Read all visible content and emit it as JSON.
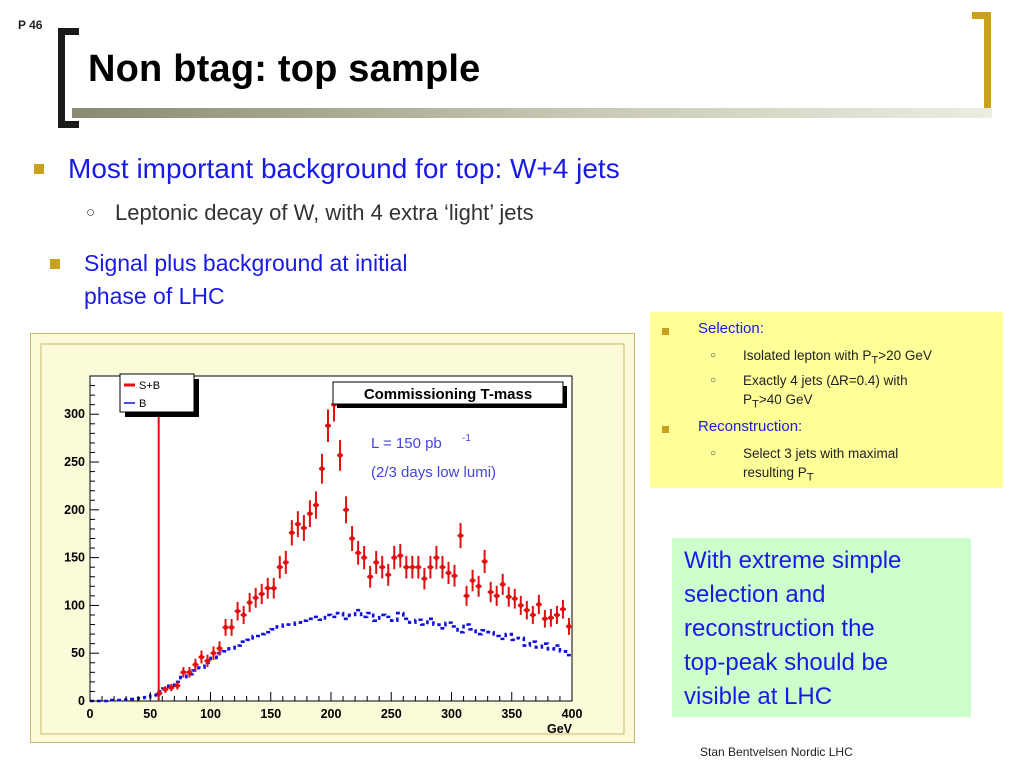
{
  "page_number": "P 46",
  "title": "Non btag: top sample",
  "bullets": {
    "main": "Most important background for top: W+4 jets",
    "sub": "Leptonic decay of W,  with 4 extra ‘light’ jets",
    "second_line1": "Signal plus background at initial",
    "second_line2": "phase of LHC"
  },
  "yellow_box": {
    "selection_heading": "Selection:",
    "sel1": "Isolated lepton with P<sub>T</sub>&gt;20 GeV",
    "sel2a": "Exactly 4 jets (∆R=0.4) with",
    "sel2b": "P<sub>T</sub>&gt;40 GeV",
    "reconstruction_heading": "Reconstruction:",
    "rec1a": "Select 3 jets with maximal",
    "rec1b": "resulting P<sub>T</sub>"
  },
  "green_box": "With extreme simple\nselection and\nreconstruction the\ntop-peak should be\nvisible at LHC",
  "footer": "Stan Bentvelsen Nordic LHC",
  "colors": {
    "accent_gold": "#c8a21c",
    "blue_text": "#1a1ae6",
    "signal_red": "#e01010",
    "background_blue": "#1010e0"
  },
  "chart_data": {
    "type": "scatter",
    "title": "Commissioning T-mass",
    "annotation_lumi": "L = 150 pb",
    "annotation_lumi_sup": "-1",
    "annotation_days": "(2/3 days low lumi)",
    "xlabel": "GeV",
    "ylabel": "",
    "xlim": [
      0,
      400
    ],
    "ylim": [
      0,
      340
    ],
    "xticks": [
      "0",
      "50",
      "100",
      "150",
      "200",
      "250",
      "300",
      "350",
      "400"
    ],
    "yticks": [
      "0",
      "50",
      "100",
      "150",
      "200",
      "250",
      "300"
    ],
    "legend_position": "top-left",
    "series": [
      {
        "name": "S+B",
        "style": "points-with-errors",
        "color": "#e01010",
        "x": [
          57.5,
          62.5,
          67.5,
          72.5,
          77.5,
          82.5,
          87.5,
          92.5,
          97.5,
          102.5,
          107.5,
          112.5,
          117.5,
          122.5,
          127.5,
          132.5,
          137.5,
          142.5,
          147.5,
          152.5,
          157.5,
          162.5,
          167.5,
          172.5,
          177.5,
          182.5,
          187.5,
          192.5,
          197.5,
          202.5,
          207.5,
          212.5,
          217.5,
          222.5,
          227.5,
          232.5,
          237.5,
          242.5,
          247.5,
          252.5,
          257.5,
          262.5,
          267.5,
          272.5,
          277.5,
          282.5,
          287.5,
          292.5,
          297.5,
          302.5,
          307.5,
          312.5,
          317.5,
          322.5,
          327.5,
          332.5,
          337.5,
          342.5,
          347.5,
          352.5,
          357.5,
          362.5,
          367.5,
          372.5,
          377.5,
          382.5,
          387.5,
          392.5,
          397.5
        ],
        "y": [
          8,
          12,
          14,
          16,
          30,
          30,
          38,
          46,
          42,
          50,
          55,
          77,
          77,
          94,
          90,
          103,
          108,
          112,
          118,
          118,
          140,
          145,
          176,
          185,
          181,
          196,
          205,
          243,
          288,
          310,
          257,
          200,
          170,
          155,
          150,
          130,
          145,
          140,
          132,
          150,
          152,
          140,
          140,
          140,
          128,
          140,
          150,
          140,
          134,
          131,
          173,
          110,
          126,
          120,
          146,
          114,
          110,
          122,
          109,
          107,
          100,
          95,
          90,
          101,
          86,
          87,
          90,
          96,
          78
        ]
      },
      {
        "name": "B",
        "style": "dashed-histogram",
        "color": "#1010e0",
        "x": [
          2.5,
          7.5,
          12.5,
          17.5,
          22.5,
          27.5,
          32.5,
          37.5,
          42.5,
          47.5,
          52.5,
          57.5,
          62.5,
          67.5,
          72.5,
          77.5,
          82.5,
          87.5,
          92.5,
          97.5,
          102.5,
          107.5,
          112.5,
          117.5,
          122.5,
          127.5,
          132.5,
          137.5,
          142.5,
          147.5,
          152.5,
          157.5,
          162.5,
          167.5,
          172.5,
          177.5,
          182.5,
          187.5,
          192.5,
          197.5,
          202.5,
          207.5,
          212.5,
          217.5,
          222.5,
          227.5,
          232.5,
          237.5,
          242.5,
          247.5,
          252.5,
          257.5,
          262.5,
          267.5,
          272.5,
          277.5,
          282.5,
          287.5,
          292.5,
          297.5,
          302.5,
          307.5,
          312.5,
          317.5,
          322.5,
          327.5,
          332.5,
          337.5,
          342.5,
          347.5,
          352.5,
          357.5,
          362.5,
          367.5,
          372.5,
          377.5,
          382.5,
          387.5,
          392.5,
          397.5
        ],
        "y": [
          0,
          0,
          0,
          1,
          1,
          1,
          2,
          2,
          3,
          4,
          6,
          10,
          13,
          16,
          20,
          25,
          28,
          32,
          35,
          40,
          45,
          50,
          52,
          55,
          58,
          62,
          64,
          68,
          70,
          72,
          75,
          78,
          80,
          80,
          82,
          84,
          86,
          88,
          85,
          90,
          88,
          92,
          86,
          90,
          95,
          88,
          92,
          84,
          90,
          88,
          84,
          92,
          86,
          82,
          85,
          80,
          86,
          80,
          76,
          82,
          78,
          72,
          80,
          75,
          70,
          74,
          72,
          68,
          65,
          70,
          64,
          66,
          58,
          62,
          56,
          60,
          54,
          58,
          52,
          48
        ]
      }
    ]
  }
}
